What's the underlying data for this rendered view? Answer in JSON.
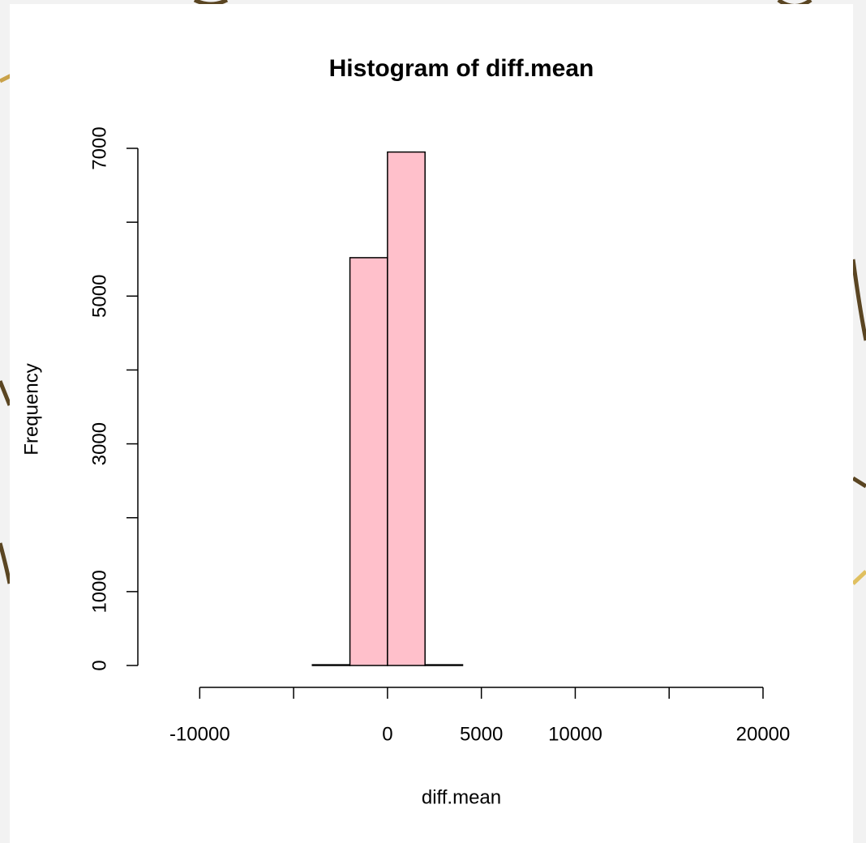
{
  "chart_data": {
    "type": "histogram",
    "title": "Histogram of diff.mean",
    "x_label": "diff.mean",
    "y_label": "Frequency",
    "bins": [
      -12000,
      -10000,
      -8000,
      -6000,
      -4000,
      -2000,
      0,
      2000,
      4000,
      6000,
      8000,
      10000,
      12000,
      14000,
      16000,
      18000,
      20000
    ],
    "values": [
      0,
      0,
      0,
      0,
      10,
      5520,
      6950,
      10,
      0,
      0,
      0,
      0,
      0,
      0,
      0,
      0
    ],
    "color": "#ffc0cb",
    "xlim": [
      -12000,
      20000
    ],
    "xticks": [
      -10000,
      {
        "value": -5000,
        "label": null
      },
      0,
      5000,
      10000,
      {
        "value": 15000,
        "label": null
      },
      20000
    ],
    "ylim": [
      0,
      7000
    ],
    "yticks": [
      0,
      1000,
      {
        "value": 2000,
        "label": null
      },
      3000,
      {
        "value": 4000,
        "label": null
      },
      5000,
      {
        "value": 6000,
        "label": null
      },
      7000
    ],
    "grid": false
  }
}
